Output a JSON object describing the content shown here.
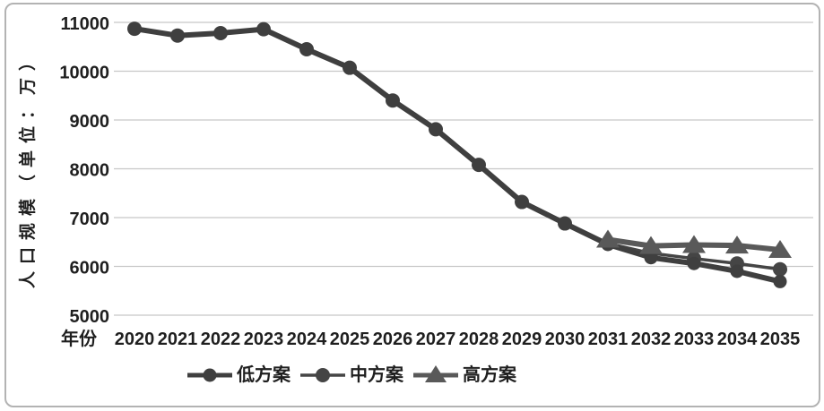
{
  "frame": {
    "border_color": "#b3b3b3",
    "background": "#ffffff"
  },
  "colors": {
    "gridline": "#c7c7c7",
    "text": "#1f1f1f"
  },
  "chart_data": {
    "type": "line",
    "title": "",
    "xlabel": "年份",
    "ylabel": "人口规模（单位：万）",
    "x": [
      2020,
      2021,
      2022,
      2023,
      2024,
      2025,
      2026,
      2027,
      2028,
      2029,
      2030,
      2031,
      2032,
      2033,
      2034,
      2035
    ],
    "yticks": [
      5000,
      6000,
      7000,
      8000,
      9000,
      10000,
      11000
    ],
    "ylim": [
      5000,
      11000
    ],
    "grid": true,
    "legend_position": "bottom",
    "series": [
      {
        "name": "低方案",
        "marker": "circle",
        "color": "#3f3f3f",
        "line_width": 6,
        "marker_size": 7.5,
        "values": [
          10870,
          10730,
          10780,
          10860,
          10450,
          10070,
          9400,
          8810,
          8080,
          7320,
          6880,
          6450,
          6180,
          6060,
          5900,
          5690
        ]
      },
      {
        "name": "中方案",
        "marker": "circle",
        "color": "#454545",
        "line_width": 3.5,
        "marker_size": 8,
        "values": [
          10870,
          10730,
          10780,
          10860,
          10450,
          10070,
          9400,
          8810,
          8080,
          7320,
          6880,
          6470,
          6270,
          6160,
          6060,
          5940
        ]
      },
      {
        "name": "高方案",
        "marker": "triangle",
        "color": "#595959",
        "line_width": 6,
        "marker_size": 13,
        "values": [
          null,
          null,
          null,
          null,
          null,
          null,
          null,
          null,
          null,
          null,
          null,
          6550,
          6420,
          6440,
          6430,
          6340
        ]
      }
    ],
    "draw_order": [
      1,
      0,
      2
    ]
  }
}
